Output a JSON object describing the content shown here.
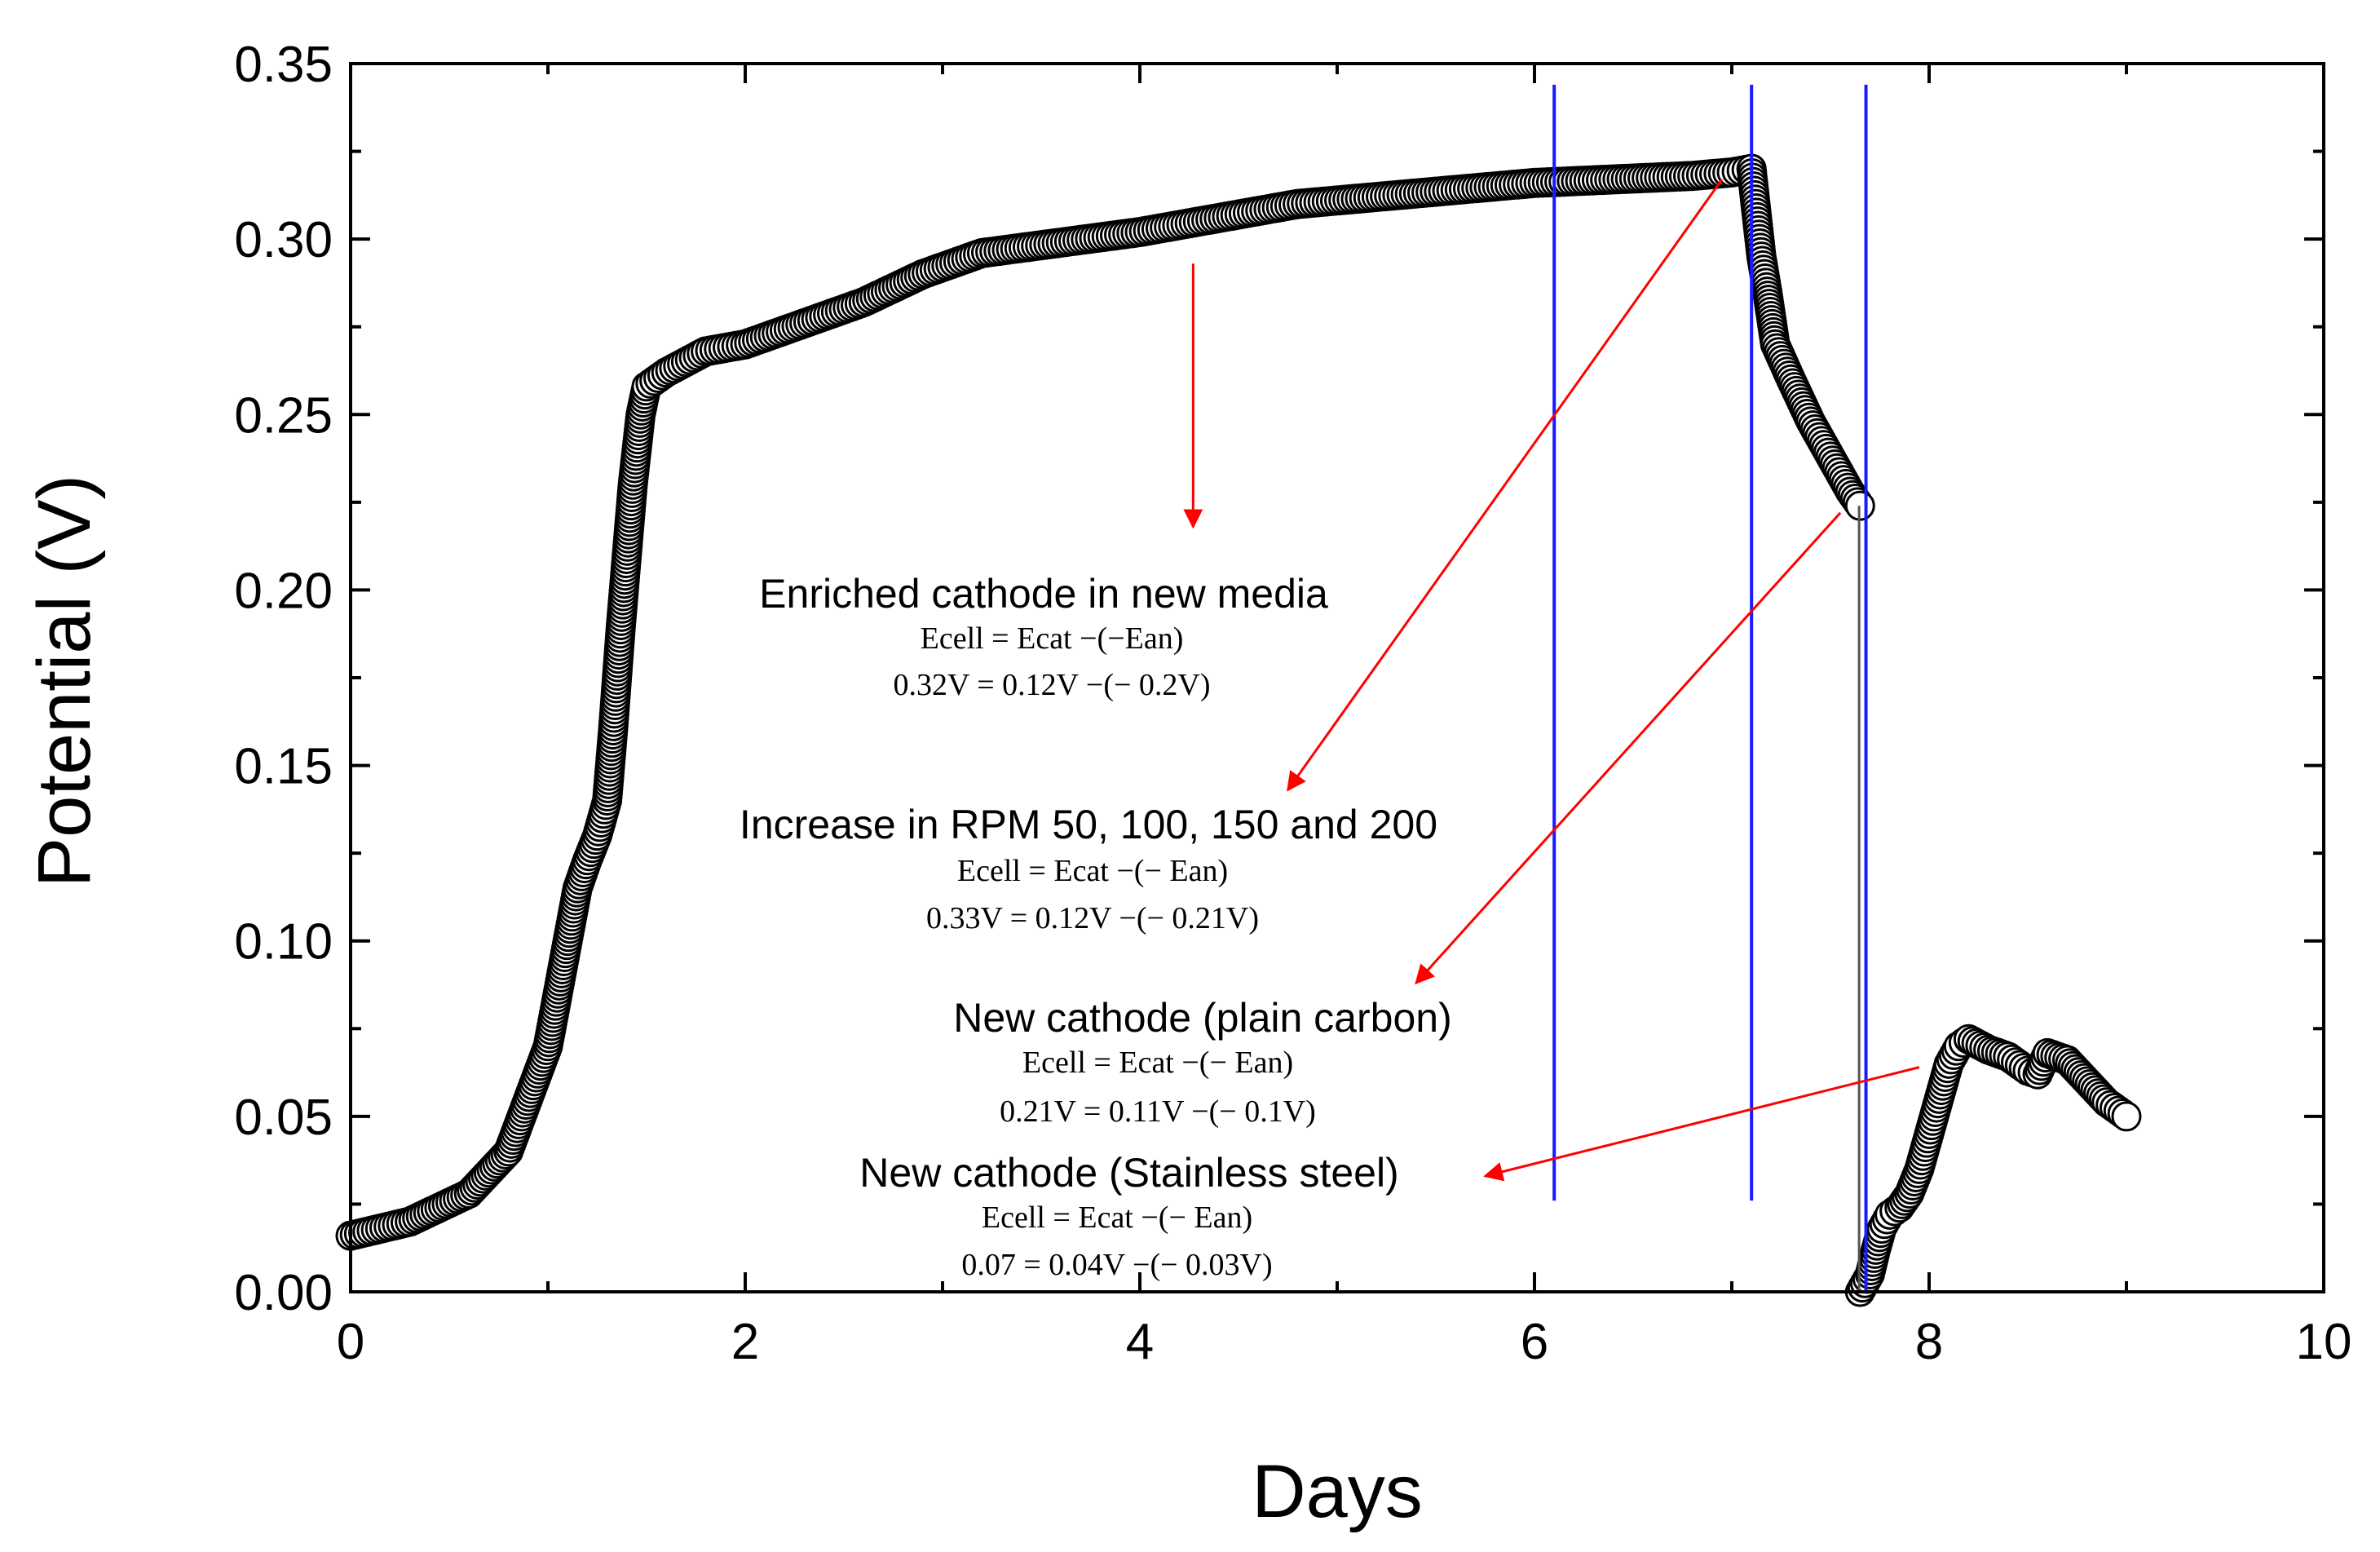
{
  "chart_data": {
    "type": "scatter",
    "title": "",
    "xlabel": "Days",
    "ylabel": "Potential (V)",
    "xlim": [
      0,
      10
    ],
    "ylim": [
      0,
      0.35
    ],
    "x_ticks": [
      "0",
      "2",
      "4",
      "6",
      "8",
      "10"
    ],
    "y_ticks": [
      "0.00",
      "0.05",
      "0.10",
      "0.15",
      "0.20",
      "0.25",
      "0.30",
      "0.35"
    ],
    "grid": false,
    "marker": "open-circle",
    "series": [
      {
        "name": "Enriched cathode in new media",
        "x": [
          0,
          0.3,
          0.6,
          0.8,
          1.0,
          1.1,
          1.15,
          1.2,
          1.25,
          1.3,
          1.33,
          1.37,
          1.4,
          1.43,
          1.47,
          1.5,
          1.6,
          1.8,
          2.0,
          2.3,
          2.6,
          2.9,
          3.2,
          3.6,
          4.0,
          4.4,
          4.8,
          5.2,
          5.6,
          6.0,
          6.4,
          6.8,
          7.0,
          7.1
        ],
        "y": [
          0.016,
          0.02,
          0.028,
          0.04,
          0.07,
          0.1,
          0.115,
          0.123,
          0.13,
          0.14,
          0.16,
          0.19,
          0.21,
          0.23,
          0.25,
          0.258,
          0.262,
          0.268,
          0.27,
          0.276,
          0.282,
          0.29,
          0.296,
          0.299,
          0.302,
          0.306,
          0.31,
          0.312,
          0.314,
          0.316,
          0.317,
          0.318,
          0.319,
          0.32
        ]
      },
      {
        "name": "Increase in RPM 50, 100, 150 and 200",
        "x": [
          7.1,
          7.13,
          7.15,
          7.18,
          7.22,
          7.3,
          7.4,
          7.5,
          7.6,
          7.65
        ],
        "y": [
          0.32,
          0.305,
          0.295,
          0.285,
          0.27,
          0.26,
          0.248,
          0.238,
          0.228,
          0.224
        ]
      },
      {
        "name": "New cathode (plain carbon)",
        "x": [
          7.65,
          7.7,
          7.73,
          7.76,
          7.8,
          7.85,
          7.9,
          7.95,
          8.0,
          8.05,
          8.1,
          8.15,
          8.2,
          8.3,
          8.4,
          8.5,
          8.55,
          8.6,
          8.7,
          8.8,
          8.9,
          9.0
        ],
        "y": [
          0.0,
          0.005,
          0.012,
          0.018,
          0.022,
          0.024,
          0.028,
          0.035,
          0.045,
          0.055,
          0.065,
          0.07,
          0.072,
          0.069,
          0.067,
          0.063,
          0.062,
          0.068,
          0.066,
          0.06,
          0.054,
          0.05
        ]
      }
    ],
    "connector": {
      "x": [
        7.67,
        7.67
      ],
      "y": [
        0.224,
        0.0
      ]
    },
    "vertical_lines": [
      {
        "x": 6.1,
        "y_from": 0.026,
        "y_to": 0.344,
        "color": "#1a1aff"
      },
      {
        "x": 7.1,
        "y_from": 0.026,
        "y_to": 0.344,
        "color": "#1a1aff"
      },
      {
        "x": 7.68,
        "y_from": 0.0,
        "y_to": 0.344,
        "color": "#1a1aff"
      }
    ],
    "arrows": [
      {
        "from": [
          4.27,
          0.293
        ],
        "to": [
          4.27,
          0.218
        ],
        "color": "#ff0000"
      },
      {
        "from": [
          6.95,
          0.317
        ],
        "to": [
          4.75,
          0.143
        ],
        "color": "#ff0000"
      },
      {
        "from": [
          7.55,
          0.222
        ],
        "to": [
          5.4,
          0.088
        ],
        "color": "#ff0000"
      },
      {
        "from": [
          7.95,
          0.064
        ],
        "to": [
          5.75,
          0.033
        ],
        "color": "#ff0000"
      }
    ],
    "annotations": [
      {
        "title": "Enriched cathode in new media",
        "eq_line": "Ecell = Ecat −(−Ean)",
        "value_line": "0.32V = 0.12V −(− 0.2V)"
      },
      {
        "title": "Increase in RPM 50, 100, 150 and 200",
        "eq_line": "Ecell = Ecat −(− Ean)",
        "value_line": "0.33V = 0.12V −(− 0.21V)"
      },
      {
        "title": "New cathode (plain carbon)",
        "eq_line": "Ecell = Ecat −(− Ean)",
        "value_line": "0.21V = 0.11V −(− 0.1V)"
      },
      {
        "title": "New cathode (Stainless steel)",
        "eq_line": "Ecell = Ecat −(− Ean)",
        "value_line": "0.07 = 0.04V −(− 0.03V)"
      }
    ],
    "colors": {
      "markers": "#000000",
      "vertical_lines": "#1a1aff",
      "arrows": "#ff0000"
    }
  }
}
